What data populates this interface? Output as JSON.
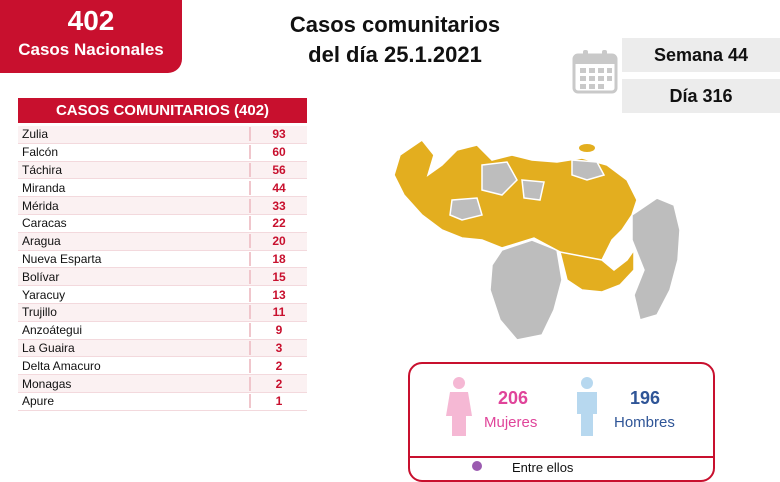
{
  "national": {
    "count": "402",
    "label": "Casos Nacionales"
  },
  "title": {
    "line1": "Casos comunitarios",
    "line2": "del día 25.1.2021"
  },
  "info": {
    "semana": "Semana 44",
    "dia": "Día 316"
  },
  "table": {
    "header": "CASOS COMUNITARIOS (402)",
    "rows": [
      {
        "state": "Zulia",
        "value": "93"
      },
      {
        "state": "Falcón",
        "value": "60"
      },
      {
        "state": "Táchira",
        "value": "56"
      },
      {
        "state": "Miranda",
        "value": "44"
      },
      {
        "state": "Mérida",
        "value": "33"
      },
      {
        "state": "Caracas",
        "value": "22"
      },
      {
        "state": "Aragua",
        "value": "20"
      },
      {
        "state": "Nueva Esparta",
        "value": "18"
      },
      {
        "state": "Bolívar",
        "value": "15"
      },
      {
        "state": "Yaracuy",
        "value": "13"
      },
      {
        "state": "Trujillo",
        "value": "11"
      },
      {
        "state": "Anzoátegui",
        "value": "9"
      },
      {
        "state": "La Guaira",
        "value": "3"
      },
      {
        "state": "Delta Amacuro",
        "value": "2"
      },
      {
        "state": "Monagas",
        "value": "2"
      },
      {
        "state": "Apure",
        "value": "1"
      }
    ]
  },
  "gender": {
    "women_count": "206",
    "women_label": "Mujeres",
    "men_count": "196",
    "men_label": "Hombres",
    "note": "Entre ellos"
  },
  "colors": {
    "brand_red": "#c8102e",
    "map_affected": "#e3ae1f",
    "map_unaffected": "#bdbdbd",
    "women": "#e0449a",
    "men": "#2f5597"
  }
}
